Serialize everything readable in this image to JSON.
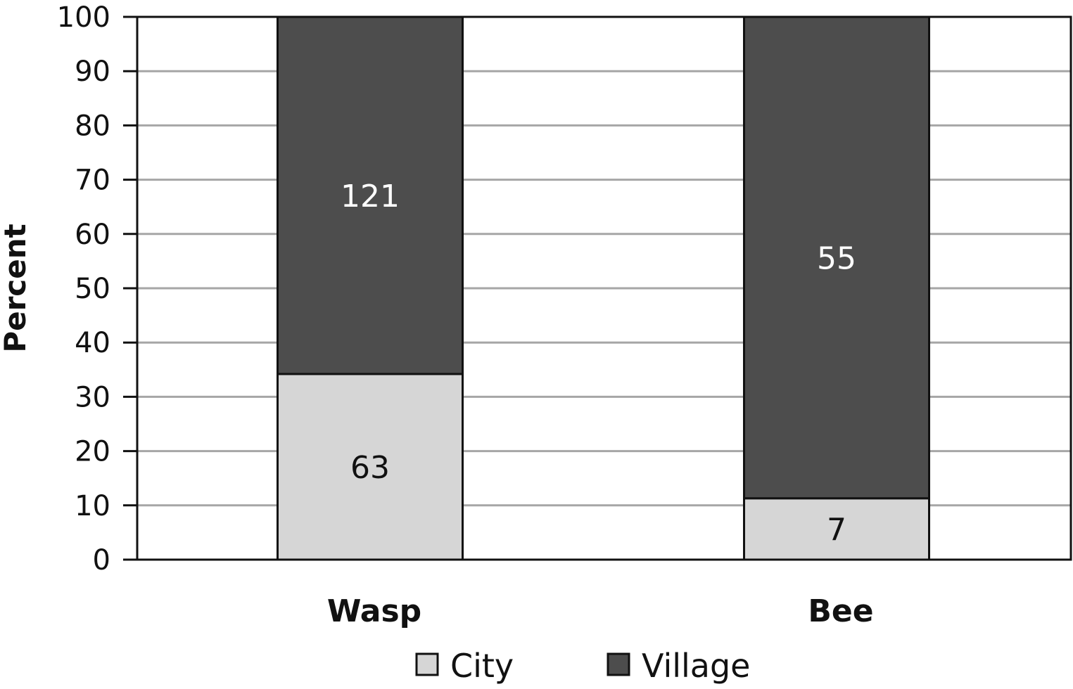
{
  "chart_data": {
    "type": "bar",
    "stacked": true,
    "categories": [
      "Wasp",
      "Bee"
    ],
    "series": [
      {
        "name": "City",
        "values": [
          34.2,
          11.3
        ],
        "labels": [
          "63",
          "7"
        ],
        "color": "#d6d6d6",
        "label_color": "#111111"
      },
      {
        "name": "Village",
        "values": [
          65.8,
          88.7
        ],
        "labels": [
          "121",
          "55"
        ],
        "color": "#4d4d4d",
        "label_color": "#ffffff"
      }
    ],
    "ylabel": "Percent",
    "xlabel": "",
    "ylim": [
      0,
      100
    ],
    "yticks": [
      "0",
      "10",
      "20",
      "30",
      "40",
      "50",
      "60",
      "70",
      "80",
      "90",
      "100"
    ],
    "grid": true,
    "legend_position": "bottom"
  }
}
